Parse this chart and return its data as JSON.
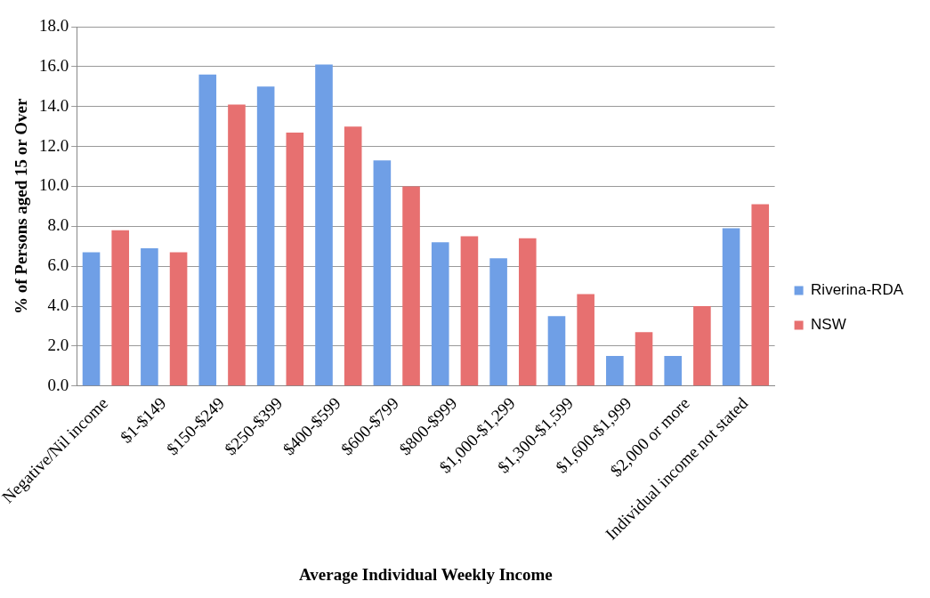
{
  "chart_data": {
    "type": "bar",
    "xlabel": "Average Individual Weekly Income",
    "ylabel": "% of Persons aged 15 or Over",
    "categories": [
      "Negative/Nil income",
      "$1-$149",
      "$150-$249",
      "$250-$399",
      "$400-$599",
      "$600-$799",
      "$800-$999",
      "$1,000-$1,299",
      "$1,300-$1,599",
      "$1,600-$1,999",
      "$2,000 or more",
      "Individual income not stated"
    ],
    "series": [
      {
        "name": "Riverina-RDA",
        "color": "#6f9fe6",
        "values": [
          6.7,
          6.9,
          15.6,
          15.0,
          16.1,
          11.3,
          7.2,
          6.4,
          3.5,
          1.5,
          1.5,
          7.9
        ]
      },
      {
        "name": "NSW",
        "color": "#e77070",
        "values": [
          7.8,
          6.7,
          14.1,
          12.7,
          13.0,
          10.0,
          7.5,
          7.4,
          4.6,
          2.7,
          4.0,
          9.1
        ]
      }
    ],
    "ylim": [
      0,
      18
    ],
    "yticks": [
      {
        "value": 0,
        "label": "0.0"
      },
      {
        "value": 2,
        "label": "2.0"
      },
      {
        "value": 4,
        "label": "4.0"
      },
      {
        "value": 6,
        "label": "6.0"
      },
      {
        "value": 8,
        "label": "8.0"
      },
      {
        "value": 10,
        "label": "10.0"
      },
      {
        "value": 12,
        "label": "12.0"
      },
      {
        "value": 14,
        "label": "14.0"
      },
      {
        "value": 16,
        "label": "16.0"
      },
      {
        "value": 18,
        "label": "18.0"
      }
    ],
    "grid": "y",
    "legend": "right"
  }
}
